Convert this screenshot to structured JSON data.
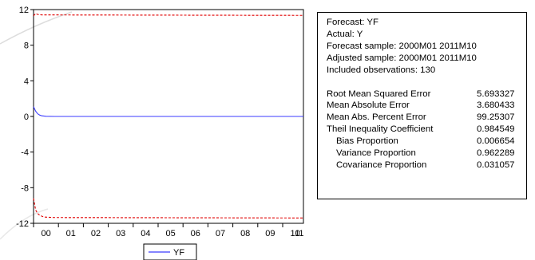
{
  "chart_data": {
    "type": "line",
    "title": "",
    "xlabel": "",
    "ylabel": "",
    "x_tick_labels": [
      "00",
      "01",
      "02",
      "03",
      "04",
      "05",
      "06",
      "07",
      "08",
      "09",
      "10",
      "11"
    ],
    "y_ticks": [
      12,
      8,
      4,
      0,
      -4,
      -8,
      -12
    ],
    "y_tick_labels": [
      "12",
      "8",
      "4",
      "0",
      "-4",
      "-8",
      "-12"
    ],
    "ylim": [
      -12,
      12
    ],
    "x_range_months": [
      0,
      130
    ],
    "series": [
      {
        "name": "YF",
        "color": "#3b3bff",
        "style": "solid",
        "points": [
          [
            0,
            1.1
          ],
          [
            1,
            0.6
          ],
          [
            2,
            0.3
          ],
          [
            3,
            0.15
          ],
          [
            4,
            0.07
          ],
          [
            6,
            0.02
          ],
          [
            10,
            0.0
          ],
          [
            130,
            0.0
          ]
        ]
      },
      {
        "color": "#e00000",
        "style": "dashed",
        "points": [
          [
            0,
            11.3
          ],
          [
            1,
            11.55
          ],
          [
            2,
            11.45
          ],
          [
            4,
            11.4
          ],
          [
            130,
            11.35
          ]
        ]
      },
      {
        "color": "#e00000",
        "style": "dashed",
        "points": [
          [
            0,
            -9.2
          ],
          [
            1,
            -10.5
          ],
          [
            2,
            -10.9
          ],
          [
            3,
            -11.1
          ],
          [
            5,
            -11.3
          ],
          [
            10,
            -11.35
          ],
          [
            130,
            -11.4
          ]
        ]
      }
    ],
    "legend": {
      "position": "bottom-center",
      "entries": [
        "YF"
      ]
    },
    "grid": false
  },
  "stats": {
    "info_lines": [
      "Forecast: YF",
      "Actual: Y",
      "Forecast sample: 2000M01 2011M10",
      "Adjusted sample: 2000M01 2011M10",
      "Included observations: 130"
    ],
    "rows": [
      {
        "label": "Root Mean Squared Error",
        "value": "5.693327"
      },
      {
        "label": "Mean Absolute Error",
        "value": "3.680433"
      },
      {
        "label": "Mean Abs. Percent Error",
        "value": "99.25307"
      },
      {
        "label": "Theil Inequality Coefficient",
        "value": "0.984549"
      },
      {
        "label": "Bias Proportion",
        "value": "0.006654"
      },
      {
        "label": "Variance Proportion",
        "value": "0.962289"
      },
      {
        "label": "Covariance Proportion",
        "value": "0.031057"
      }
    ]
  }
}
